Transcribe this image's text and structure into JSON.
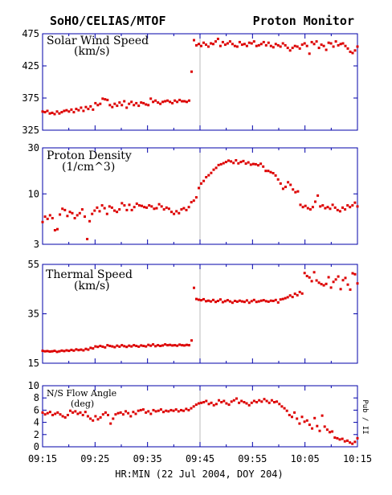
{
  "header": {
    "left_title": "SoHO/CELIAS/MTOF",
    "right_title": "Proton Monitor"
  },
  "x_axis": {
    "label": "HR:MIN (22 Jul 2004, DOY 204)",
    "tick_labels": [
      "09:15",
      "09:25",
      "09:35",
      "09:45",
      "09:55",
      "10:05",
      "10:15"
    ]
  },
  "colors": {
    "data": "#dd0000",
    "axis": "#0000aa",
    "marker": "#bbbbbb",
    "text": "#000000"
  },
  "chart_data": [
    {
      "type": "scatter",
      "name": "speed",
      "title": "Solar Wind Speed",
      "units": "(km/s)",
      "ylim": [
        325,
        475
      ],
      "yscale": "linear",
      "y_ticks": [
        325,
        375,
        425,
        475
      ],
      "y_tick_labels": [
        "325",
        "375",
        "425",
        "475"
      ],
      "x_start_min": 555,
      "x_end_min": 615,
      "event_marker_min": 585,
      "values": [
        354,
        353,
        355,
        351,
        352,
        350,
        354,
        351,
        353,
        355,
        356,
        354,
        357,
        353,
        358,
        356,
        360,
        355,
        361,
        358,
        362,
        357,
        367,
        364,
        366,
        374,
        373,
        372,
        364,
        361,
        366,
        363,
        368,
        364,
        370,
        360,
        366,
        369,
        364,
        367,
        363,
        368,
        367,
        365,
        364,
        374,
        369,
        371,
        368,
        366,
        369,
        370,
        371,
        369,
        367,
        371,
        369,
        372,
        370,
        370,
        369,
        371,
        416,
        465,
        457,
        459,
        456,
        461,
        458,
        455,
        460,
        459,
        463,
        467,
        456,
        462,
        458,
        460,
        463,
        459,
        456,
        455,
        462,
        458,
        459,
        456,
        461,
        460,
        463,
        456,
        457,
        459,
        462,
        457,
        461,
        456,
        454,
        459,
        457,
        455,
        460,
        457,
        453,
        449,
        453,
        456,
        455,
        452,
        458,
        460,
        456,
        444,
        462,
        459,
        463,
        453,
        458,
        456,
        450,
        461,
        460,
        455,
        463,
        457,
        459,
        460,
        456,
        452,
        447,
        445,
        449,
        455
      ]
    },
    {
      "type": "scatter",
      "name": "density",
      "title": "Proton Density",
      "units": "(1/cm^3)",
      "ylim": [
        3,
        30
      ],
      "yscale": "log",
      "y_ticks": [
        3,
        10,
        30
      ],
      "y_tick_labels": [
        "3",
        "10",
        "30"
      ],
      "x_start_min": 555,
      "x_end_min": 615,
      "event_marker_min": 585,
      "values": [
        5.1,
        5.8,
        5.5,
        6.0,
        5.6,
        4.2,
        4.3,
        6.1,
        7.0,
        6.8,
        5.9,
        6.5,
        6.3,
        5.6,
        6.0,
        6.3,
        6.9,
        5.8,
        3.4,
        5.2,
        6.2,
        6.7,
        7.2,
        6.6,
        7.6,
        7.1,
        6.2,
        7.4,
        7.2,
        6.7,
        6.5,
        6.9,
        8.0,
        7.6,
        6.8,
        7.7,
        6.8,
        7.3,
        7.9,
        7.6,
        7.5,
        7.3,
        7.2,
        7.6,
        7.4,
        7.0,
        7.1,
        7.8,
        7.4,
        6.9,
        7.2,
        7.0,
        6.5,
        6.2,
        6.6,
        6.3,
        6.9,
        7.1,
        6.8,
        7.3,
        8.2,
        8.5,
        9.2,
        11.5,
        12.8,
        13.6,
        14.9,
        15.6,
        16.5,
        17.8,
        18.6,
        19.9,
        20.3,
        20.8,
        21.4,
        22.1,
        21.7,
        20.9,
        22.3,
        20.7,
        21.4,
        21.9,
        20.6,
        21.2,
        20.1,
        20.4,
        20.3,
        19.8,
        20.5,
        19.2,
        17.3,
        17.3,
        16.8,
        16.4,
        15.5,
        14.1,
        12.8,
        11.3,
        11.8,
        13.2,
        12.4,
        11.1,
        10.4,
        10.6,
        7.7,
        7.3,
        7.5,
        7.1,
        6.9,
        7.3,
        8.3,
        9.6,
        7.4,
        7.6,
        7.1,
        7.3,
        7.0,
        7.7,
        7.2,
        6.8,
        6.6,
        7.2,
        6.9,
        7.6,
        7.3,
        7.6,
        8.1,
        7.4
      ]
    },
    {
      "type": "scatter",
      "name": "thermal",
      "title": "Thermal Speed",
      "units": "(km/s)",
      "ylim": [
        15,
        55
      ],
      "yscale": "linear",
      "y_ticks": [
        15,
        35,
        55
      ],
      "y_tick_labels": [
        "15",
        "35",
        "55"
      ],
      "x_start_min": 555,
      "x_end_min": 615,
      "event_marker_min": 585,
      "values": [
        20.0,
        19.8,
        19.9,
        19.7,
        19.8,
        20.0,
        19.6,
        19.8,
        20.1,
        19.9,
        20.2,
        20.0,
        20.4,
        20.1,
        20.6,
        20.3,
        20.5,
        20.2,
        20.8,
        20.5,
        21.2,
        21.0,
        21.8,
        21.6,
        22.0,
        21.7,
        21.4,
        22.3,
        22.0,
        21.8,
        21.5,
        22.1,
        21.7,
        22.3,
        21.9,
        21.6,
        22.1,
        21.8,
        22.3,
        22.0,
        21.7,
        22.2,
        22.0,
        21.8,
        22.4,
        22.1,
        22.6,
        21.9,
        22.3,
        22.0,
        22.2,
        22.6,
        22.3,
        22.4,
        22.2,
        22.3,
        22.1,
        22.5,
        22.3,
        22.2,
        22.4,
        22.3,
        24.2,
        45.5,
        41.0,
        40.7,
        40.5,
        40.9,
        40.1,
        40.3,
        40.0,
        40.6,
        39.8,
        40.2,
        40.8,
        39.7,
        40.1,
        40.5,
        40.0,
        39.5,
        40.2,
        39.9,
        40.3,
        40.0,
        39.8,
        40.4,
        39.5,
        40.1,
        40.6,
        39.8,
        40.0,
        40.3,
        40.5,
        40.1,
        39.9,
        40.3,
        40.2,
        40.6,
        39.6,
        40.8,
        41.0,
        41.3,
        41.7,
        42.4,
        41.8,
        43.1,
        42.5,
        43.8,
        43.2,
        51.5,
        50.3,
        49.7,
        48.2,
        51.8,
        48.5,
        47.6,
        47.0,
        46.5,
        47.1,
        49.8,
        45.6,
        47.9,
        48.9,
        50.1,
        45.0,
        48.6,
        49.5,
        46.8,
        44.8,
        51.4,
        51.0,
        47.3
      ]
    },
    {
      "type": "scatter",
      "name": "flow",
      "title": "N/S Flow Angle",
      "units": "(deg)",
      "ylim": [
        0,
        10
      ],
      "yscale": "linear",
      "y_ticks": [
        0,
        2,
        4,
        6,
        8,
        10
      ],
      "y_tick_labels": [
        "0",
        "2",
        "4",
        "6",
        "8",
        "10"
      ],
      "right_label": "Pub / II",
      "x_start_min": 555,
      "x_end_min": 615,
      "event_marker_min": 585,
      "values": [
        5.6,
        5.3,
        5.5,
        5.7,
        5.2,
        5.4,
        5.6,
        5.3,
        5.0,
        4.8,
        5.2,
        5.9,
        5.6,
        5.8,
        5.4,
        5.6,
        5.2,
        5.7,
        5.0,
        4.6,
        4.3,
        5.0,
        4.5,
        4.8,
        5.3,
        5.6,
        5.2,
        3.8,
        4.6,
        5.3,
        5.5,
        5.6,
        5.3,
        5.8,
        5.5,
        5.0,
        5.7,
        5.4,
        5.9,
        6.0,
        6.1,
        5.6,
        5.8,
        5.4,
        6.0,
        5.8,
        5.9,
        6.1,
        5.7,
        5.9,
        5.8,
        6.0,
        5.9,
        6.1,
        5.8,
        6.0,
        5.9,
        6.2,
        6.0,
        6.3,
        6.6,
        6.9,
        7.1,
        7.2,
        7.3,
        7.5,
        7.0,
        7.2,
        6.8,
        7.0,
        7.6,
        7.3,
        7.5,
        7.1,
        6.9,
        7.4,
        7.6,
        7.9,
        7.2,
        7.5,
        7.3,
        7.1,
        6.8,
        7.2,
        7.5,
        7.3,
        7.6,
        7.4,
        7.8,
        7.5,
        7.2,
        7.6,
        7.3,
        7.4,
        7.0,
        6.6,
        6.3,
        5.9,
        5.2,
        4.9,
        5.6,
        4.6,
        3.8,
        4.9,
        4.1,
        4.3,
        3.6,
        3.0,
        4.7,
        3.4,
        2.6,
        5.1,
        3.3,
        2.8,
        2.4,
        2.5,
        1.5,
        1.4,
        1.2,
        1.3,
        0.9,
        1.0,
        0.7,
        0.5,
        0.8,
        1.4
      ]
    }
  ]
}
